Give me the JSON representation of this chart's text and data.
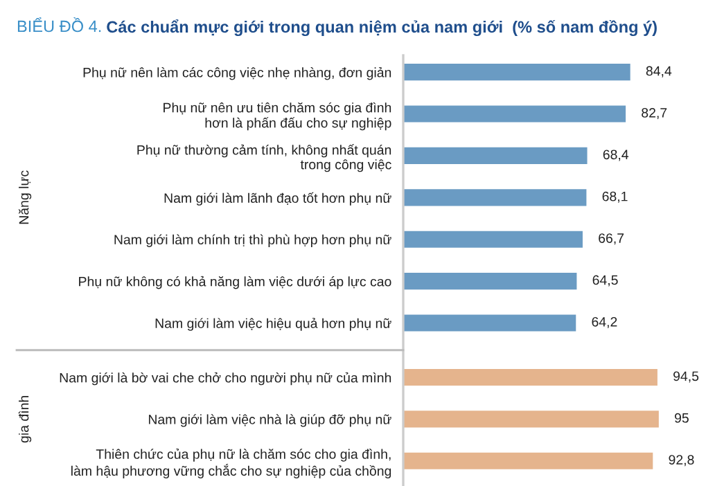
{
  "chart_data": {
    "type": "bar",
    "orientation": "horizontal",
    "value_labels": [
      "84,4",
      "82,7",
      "68,4",
      "68,1",
      "66,7",
      "64,5",
      "64,2",
      "94,5",
      "95",
      "92,8"
    ],
    "title": "BIỂU ĐỒ 4.",
    "subtitle": "Các chuẩn mực giới trong quan niệm của nam giới  (% số nam đồng ý)",
    "categories": [
      "Phụ nữ nên làm các công việc nhẹ nhàng, đơn giản",
      "Phụ nữ nên ưu tiên chăm sóc gia đình\nhơn là phấn đấu cho sự nghiệp",
      "Phụ nữ thường cảm tính, không nhất quán\ntrong công việc",
      "Nam giới làm lãnh đạo tốt hơn phụ nữ",
      "Nam giới làm chính trị thì phù hợp hơn phụ nữ",
      "Phụ nữ không có khả năng làm việc dưới áp lực cao",
      "Nam giới làm việc hiệu quả hơn phụ nữ",
      "Nam giới là bờ vai che chở cho người phụ nữ của mình",
      "Nam giới làm việc nhà là giúp đỡ phụ nữ",
      "Thiên chức của phụ nữ là chăm sóc cho gia đình,\nlàm hậu phương vững chắc cho sự nghiệp của chồng"
    ],
    "values": [
      84.4,
      82.7,
      68.4,
      68.1,
      66.7,
      64.5,
      64.2,
      94.5,
      95,
      92.8
    ],
    "colors": [
      "#6a9bc3",
      "#6a9bc3",
      "#6a9bc3",
      "#6a9bc3",
      "#6a9bc3",
      "#6a9bc3",
      "#6a9bc3",
      "#e5b48d",
      "#e5b48d",
      "#e5b48d"
    ],
    "annotations": [
      "Năng lực",
      "gia đình"
    ],
    "grid": false,
    "legend": false
  }
}
